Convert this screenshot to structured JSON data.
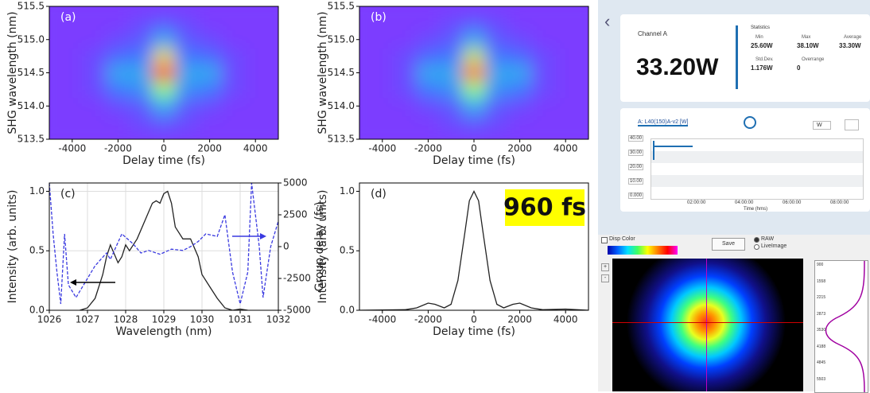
{
  "chart_data": [
    {
      "type": "heatmap",
      "panel_label": "(a)",
      "xlabel": "Delay time (fs)",
      "ylabel": "SHG wavelength (nm)",
      "xlim": [
        -5000,
        5000
      ],
      "ylim": [
        513.5,
        515.5
      ],
      "xticks": [
        -4000,
        -2000,
        0,
        2000,
        4000
      ],
      "yticks": [
        513.5,
        {
          "value": 514,
          "label": "514.0"
        },
        514.5,
        {
          "value": 515,
          "label": "515.0"
        },
        515.5
      ],
      "x": [
        -5000,
        -4000,
        -3000,
        -2000,
        -1000,
        0,
        1000,
        2000,
        3000,
        4000,
        5000
      ],
      "y": [
        513.5,
        513.75,
        514,
        514.25,
        514.5,
        514.75,
        515,
        515.25,
        515.5
      ],
      "z": [
        [
          0,
          0,
          0,
          0,
          0,
          0,
          0,
          0,
          0,
          0,
          0
        ],
        [
          0,
          0,
          0,
          0,
          0.05,
          0.1,
          0.05,
          0,
          0,
          0,
          0
        ],
        [
          0,
          0,
          0,
          0.05,
          0.1,
          0.3,
          0.1,
          0.05,
          0,
          0,
          0
        ],
        [
          0,
          0,
          0.05,
          0.2,
          0.25,
          0.6,
          0.25,
          0.2,
          0.05,
          0,
          0
        ],
        [
          0,
          0,
          0.05,
          0.3,
          0.3,
          0.95,
          0.3,
          0.3,
          0.05,
          0,
          0
        ],
        [
          0,
          0,
          0.05,
          0.15,
          0.2,
          0.75,
          0.2,
          0.15,
          0.05,
          0,
          0
        ],
        [
          0,
          0,
          0,
          0.05,
          0.1,
          0.3,
          0.1,
          0.05,
          0,
          0,
          0
        ],
        [
          0,
          0,
          0,
          0,
          0.05,
          0.1,
          0.05,
          0,
          0,
          0,
          0
        ],
        [
          0,
          0,
          0,
          0,
          0,
          0,
          0,
          0,
          0,
          0,
          0
        ]
      ]
    },
    {
      "type": "heatmap",
      "panel_label": "(b)",
      "xlabel": "Delay time (fs)",
      "ylabel": "SHG wavelength (nm)",
      "xlim": [
        -5000,
        5000
      ],
      "ylim": [
        513.5,
        515.5
      ],
      "xticks": [
        -4000,
        -2000,
        0,
        2000,
        4000
      ],
      "yticks": [
        513.5,
        {
          "value": 514,
          "label": "514.0"
        },
        514.5,
        {
          "value": 515,
          "label": "515.0"
        },
        515.5
      ],
      "x": [
        -5000,
        -4000,
        -3000,
        -2000,
        -1000,
        0,
        1000,
        2000,
        3000,
        4000,
        5000
      ],
      "y": [
        513.5,
        513.75,
        514,
        514.25,
        514.5,
        514.75,
        515,
        515.25,
        515.5
      ],
      "z": [
        [
          0,
          0,
          0,
          0,
          0,
          0,
          0,
          0,
          0,
          0,
          0
        ],
        [
          0,
          0,
          0,
          0,
          0.05,
          0.1,
          0.05,
          0,
          0,
          0,
          0
        ],
        [
          0,
          0,
          0,
          0.05,
          0.1,
          0.3,
          0.1,
          0.05,
          0,
          0,
          0
        ],
        [
          0,
          0,
          0.05,
          0.2,
          0.25,
          0.6,
          0.25,
          0.2,
          0.05,
          0,
          0
        ],
        [
          0,
          0,
          0.05,
          0.3,
          0.3,
          0.9,
          0.3,
          0.3,
          0.05,
          0,
          0
        ],
        [
          0,
          0,
          0.05,
          0.15,
          0.2,
          0.7,
          0.2,
          0.15,
          0.05,
          0,
          0
        ],
        [
          0,
          0,
          0,
          0.05,
          0.1,
          0.3,
          0.1,
          0.05,
          0,
          0,
          0
        ],
        [
          0,
          0,
          0,
          0,
          0.05,
          0.1,
          0.05,
          0,
          0,
          0,
          0
        ],
        [
          0,
          0,
          0,
          0,
          0,
          0,
          0,
          0,
          0,
          0,
          0
        ]
      ]
    },
    {
      "type": "line",
      "panel_label": "(c)",
      "xlabel": "Wavelength (nm)",
      "ylabel": "Intensity (arb. units)",
      "y2label": "Group delay (fs)",
      "xlim": [
        1026,
        1032
      ],
      "ylim": [
        0,
        1.07
      ],
      "y2lim": [
        -5000,
        5000
      ],
      "grid": true,
      "xticks": [
        1026,
        1027,
        1028,
        1029,
        1030,
        1031,
        1032
      ],
      "yticks": [
        {
          "value": 0,
          "label": "0.0"
        },
        0.5,
        {
          "value": 1,
          "label": "1.0"
        }
      ],
      "y2ticks": [
        -5000,
        -2500,
        0,
        2500,
        5000
      ],
      "series": [
        {
          "color": "#222222",
          "line_style": "solid",
          "x": [
            1026.8,
            1027,
            1027.2,
            1027.4,
            1027.5,
            1027.6,
            1027.8,
            1027.9,
            1028,
            1028.1,
            1028.3,
            1028.5,
            1028.7,
            1028.8,
            1028.9,
            1029,
            1029.1,
            1029.2,
            1029.3,
            1029.5,
            1029.7,
            1029.9,
            1030,
            1030.2,
            1030.4,
            1030.6,
            1030.8,
            1031,
            1031.2
          ],
          "values": [
            0,
            0.02,
            0.1,
            0.3,
            0.45,
            0.55,
            0.4,
            0.45,
            0.55,
            0.5,
            0.6,
            0.75,
            0.9,
            0.92,
            0.9,
            0.98,
            1,
            0.9,
            0.7,
            0.6,
            0.6,
            0.45,
            0.3,
            0.2,
            0.1,
            0.02,
            0,
            0.01,
            0
          ]
        },
        {
          "color": "#3a3ae0",
          "line_style": "dashed",
          "axis": "y2",
          "x": [
            1026,
            1026.1,
            1026.2,
            1026.3,
            1026.4,
            1026.5,
            1026.7,
            1026.9,
            1027.2,
            1027.5,
            1027.6,
            1027.9,
            1028.2,
            1028.4,
            1028.6,
            1028.9,
            1029.2,
            1029.5,
            1029.7,
            1029.9,
            1030.1,
            1030.4,
            1030.6,
            1030.8,
            1031,
            1031.2,
            1031.3,
            1031.5,
            1031.6,
            1031.8,
            1032
          ],
          "values": [
            5000,
            1000,
            -2000,
            -4500,
            1000,
            -3000,
            -4000,
            -3000,
            -1500,
            -500,
            -1000,
            1000,
            200,
            -500,
            -300,
            -600,
            -200,
            -300,
            0,
            400,
            1000,
            800,
            2500,
            -2000,
            -4500,
            -2000,
            5000,
            0,
            -4000,
            0,
            2000
          ]
        }
      ]
    },
    {
      "type": "line",
      "panel_label": "(d)",
      "xlabel": "Delay time (fs)",
      "ylabel": "Intensity (arb. units)",
      "annotation": "960 fs",
      "xlim": [
        -5000,
        5000
      ],
      "ylim": [
        0,
        1.07
      ],
      "grid": false,
      "xticks": [
        -4000,
        -2000,
        0,
        2000,
        4000
      ],
      "yticks": [
        {
          "value": 0,
          "label": "0.0"
        },
        0.5,
        {
          "value": 1,
          "label": "1.0"
        }
      ],
      "series": [
        {
          "color": "#222222",
          "line_style": "solid",
          "x": [
            -5000,
            -3000,
            -2500,
            -2000,
            -1700,
            -1300,
            -1000,
            -700,
            -400,
            -200,
            0,
            200,
            400,
            700,
            1000,
            1300,
            1700,
            2000,
            2500,
            3000,
            4000,
            5000
          ],
          "values": [
            0,
            0.005,
            0.02,
            0.06,
            0.05,
            0.02,
            0.05,
            0.25,
            0.65,
            0.92,
            1,
            0.92,
            0.65,
            0.25,
            0.05,
            0.02,
            0.05,
            0.06,
            0.02,
            0.005,
            0.01,
            0
          ]
        }
      ]
    }
  ],
  "power_meter": {
    "channel": "Channel A",
    "reading": "33.20W",
    "statistics_title": "Statistics",
    "stats": [
      {
        "label": "Min",
        "value": "25.60W"
      },
      {
        "label": "Max",
        "value": "38.10W"
      },
      {
        "label": "Average",
        "value": "33.30W"
      },
      {
        "label": "Std.Dev.",
        "value": "1.176W"
      },
      {
        "label": "Overrange",
        "value": "0"
      }
    ],
    "plot_title": "A: L40(150)A-v2 [W]",
    "unit_select": "W",
    "y_labels": [
      "40.00",
      "30.00",
      "20.00",
      "10.00",
      "0.000"
    ],
    "x_labels": [
      "02:00:00",
      "04:00:00",
      "06:00:00",
      "08:00:00"
    ],
    "x_title": "Time (hms)"
  },
  "beam_profiler": {
    "disp_color": "Disp Color",
    "save": "Save",
    "modes": [
      "RAW",
      "LiveImage"
    ],
    "scale": [
      "900",
      "1558",
      "2215",
      "2873",
      "3530",
      "4188",
      "4845",
      "5503"
    ]
  }
}
